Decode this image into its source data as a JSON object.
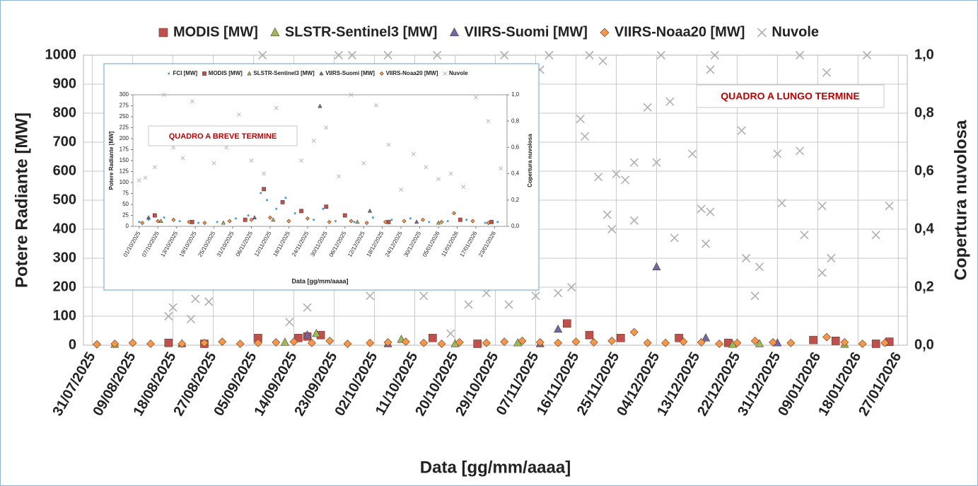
{
  "chart_data": [
    {
      "type": "scatter",
      "x_label": "Data [gg/mm/aaaa]",
      "y_label": "Potere Radiante [MW]",
      "y2_label": "Copertura nuvolosa",
      "annotation": "QUADRO A LUNGO TERMINE",
      "grid": true,
      "xlim": [
        "2025-07-29",
        "2026-01-29"
      ],
      "xticks": [
        {
          "value": "2025-07-31",
          "label": "31/07/2025"
        },
        {
          "value": "2025-08-09",
          "label": "09/08/2025"
        },
        {
          "value": "2025-08-18",
          "label": "18/08/2025"
        },
        {
          "value": "2025-08-27",
          "label": "27/08/2025"
        },
        {
          "value": "2025-09-05",
          "label": "05/09/2025"
        },
        {
          "value": "2025-09-14",
          "label": "14/09/2025"
        },
        {
          "value": "2025-09-23",
          "label": "23/09/2025"
        },
        {
          "value": "2025-10-02",
          "label": "02/10/2025"
        },
        {
          "value": "2025-10-11",
          "label": "11/10/2025"
        },
        {
          "value": "2025-10-20",
          "label": "20/10/2025"
        },
        {
          "value": "2025-10-29",
          "label": "29/10/2025"
        },
        {
          "value": "2025-11-07",
          "label": "07/11/2025"
        },
        {
          "value": "2025-11-16",
          "label": "16/11/2025"
        },
        {
          "value": "2025-11-25",
          "label": "25/11/2025"
        },
        {
          "value": "2025-12-04",
          "label": "04/12/2025"
        },
        {
          "value": "2025-12-13",
          "label": "13/12/2025"
        },
        {
          "value": "2025-12-22",
          "label": "22/12/2025"
        },
        {
          "value": "2025-12-31",
          "label": "31/12/2025"
        },
        {
          "value": "2026-01-09",
          "label": "09/01/2026"
        },
        {
          "value": "2026-01-18",
          "label": "18/01/2026"
        },
        {
          "value": "2026-01-27",
          "label": "27/01/2026"
        }
      ],
      "ylim": [
        0,
        1000
      ],
      "yticks": [
        0,
        100,
        200,
        300,
        400,
        500,
        600,
        700,
        800,
        900,
        1000
      ],
      "y2lim": [
        0,
        1
      ],
      "y2ticks": [
        {
          "value": 0,
          "label": "0,0"
        },
        {
          "value": 0.2,
          "label": "0,2"
        },
        {
          "value": 0.4,
          "label": "0,4"
        },
        {
          "value": 0.6,
          "label": "0,6"
        },
        {
          "value": 0.8,
          "label": "0,8"
        },
        {
          "value": 1,
          "label": "1,0"
        }
      ],
      "series": [
        {
          "name": "MODIS [MW]",
          "color": "#c0504d",
          "marker": "square",
          "x": [
            "2025-08-17",
            "2025-08-25",
            "2025-09-06",
            "2025-09-15",
            "2025-09-17",
            "2025-09-20",
            "2025-10-15",
            "2025-10-25",
            "2025-11-14",
            "2025-11-19",
            "2025-11-26",
            "2025-12-09",
            "2025-12-20",
            "2026-01-08",
            "2026-01-13",
            "2026-01-22",
            "2026-01-25"
          ],
          "values": [
            8,
            5,
            25,
            25,
            30,
            35,
            25,
            5,
            75,
            35,
            25,
            25,
            8,
            18,
            15,
            5,
            12
          ]
        },
        {
          "name": "SLSTR-Sentinel3 [MW]",
          "color": "#9bbb59",
          "marker": "triangle",
          "x": [
            "2025-08-05",
            "2025-09-12",
            "2025-09-19",
            "2025-10-08",
            "2025-10-20",
            "2025-11-03",
            "2025-12-21",
            "2025-12-27",
            "2026-01-15"
          ],
          "values": [
            3,
            10,
            40,
            20,
            5,
            8,
            3,
            5,
            3
          ]
        },
        {
          "name": "VIIRS-Suomi  [MW]",
          "color": "#7067a8",
          "marker": "triangle",
          "x": [
            "2025-08-20",
            "2025-09-17",
            "2025-10-05",
            "2025-11-08",
            "2025-11-12",
            "2025-12-04",
            "2025-12-15",
            "2025-12-31"
          ],
          "values": [
            5,
            35,
            5,
            5,
            55,
            270,
            25,
            8
          ]
        },
        {
          "name": "VIIRS-Noaa20 [MW]",
          "color": "#f79646",
          "marker": "diamond",
          "x": [
            "2025-08-01",
            "2025-08-05",
            "2025-08-09",
            "2025-08-13",
            "2025-08-20",
            "2025-08-25",
            "2025-08-29",
            "2025-09-02",
            "2025-09-06",
            "2025-09-10",
            "2025-09-14",
            "2025-09-18",
            "2025-09-22",
            "2025-09-26",
            "2025-10-01",
            "2025-10-05",
            "2025-10-09",
            "2025-10-13",
            "2025-10-17",
            "2025-10-21",
            "2025-10-27",
            "2025-10-31",
            "2025-11-04",
            "2025-11-08",
            "2025-11-12",
            "2025-11-16",
            "2025-11-20",
            "2025-11-24",
            "2025-11-29",
            "2025-12-02",
            "2025-12-06",
            "2025-12-10",
            "2025-12-14",
            "2025-12-18",
            "2025-12-22",
            "2025-12-26",
            "2025-12-30",
            "2026-01-03",
            "2026-01-11",
            "2026-01-15",
            "2026-01-19",
            "2026-01-24"
          ],
          "values": [
            3,
            5,
            8,
            5,
            5,
            8,
            12,
            5,
            8,
            10,
            12,
            8,
            15,
            5,
            8,
            10,
            12,
            8,
            5,
            10,
            8,
            12,
            15,
            10,
            8,
            12,
            10,
            15,
            45,
            8,
            8,
            12,
            10,
            5,
            8,
            15,
            10,
            8,
            28,
            10,
            5,
            8
          ]
        },
        {
          "name": "Nuvole",
          "color": "#b0b0b0",
          "marker": "x",
          "axis": "y2",
          "x": [
            "2025-08-17",
            "2025-08-18",
            "2025-08-22",
            "2025-08-23",
            "2025-08-26",
            "2025-09-07",
            "2025-09-13",
            "2025-09-17",
            "2025-09-24",
            "2025-09-27",
            "2025-10-01",
            "2025-10-05",
            "2025-10-13",
            "2025-10-16",
            "2025-10-19",
            "2025-10-23",
            "2025-10-27",
            "2025-10-31",
            "2025-11-01",
            "2025-11-07",
            "2025-11-08",
            "2025-11-10",
            "2025-11-12",
            "2025-11-15",
            "2025-11-17",
            "2025-11-18",
            "2025-11-19",
            "2025-11-21",
            "2025-11-22",
            "2025-11-23",
            "2025-11-24",
            "2025-11-25",
            "2025-11-27",
            "2025-11-29",
            "2025-11-29",
            "2025-12-02",
            "2025-12-04",
            "2025-12-05",
            "2025-12-07",
            "2025-12-08",
            "2025-12-12",
            "2025-12-14",
            "2025-12-15",
            "2025-12-16",
            "2025-12-16",
            "2025-12-17",
            "2025-12-23",
            "2025-12-24",
            "2025-12-26",
            "2025-12-27",
            "2025-12-31",
            "2026-01-01",
            "2026-01-05",
            "2026-01-05",
            "2026-01-06",
            "2026-01-10",
            "2026-01-10",
            "2026-01-11",
            "2026-01-12",
            "2026-01-20",
            "2026-01-22",
            "2026-01-25"
          ],
          "values": [
            0.1,
            0.13,
            0.09,
            0.16,
            0.15,
            1,
            0.08,
            0.13,
            1,
            1,
            0.17,
            1,
            0.17,
            1,
            0.04,
            0.14,
            0.18,
            1,
            0.14,
            0.17,
            0.95,
            1,
            0.18,
            0.2,
            0.78,
            0.72,
            1,
            0.58,
            0.98,
            0.45,
            0.4,
            0.59,
            0.57,
            0.63,
            0.43,
            0.82,
            0.63,
            1,
            0.84,
            0.37,
            0.66,
            0.47,
            0.35,
            0.46,
            0.95,
            1,
            0.74,
            0.3,
            0.17,
            0.27,
            0.66,
            0.49,
            0.67,
            1,
            0.38,
            0.48,
            0.25,
            0.94,
            0.3,
            1,
            0.38,
            0.48
          ]
        }
      ]
    },
    {
      "type": "scatter",
      "x_label": "Data [gg/mm/aaaa]",
      "y_label": "Potere Radiante [MW]",
      "y2_label": "Copertura nuvolosa",
      "annotation": "QUADRO A BREVE TERMINE",
      "grid": false,
      "xlim": [
        "2025-09-29",
        "2026-01-27"
      ],
      "xticks": [
        {
          "value": "2025-10-01",
          "label": "01/10/2025"
        },
        {
          "value": "2025-10-07",
          "label": "07/10/2025"
        },
        {
          "value": "2025-10-13",
          "label": "13/10/2025"
        },
        {
          "value": "2025-10-19",
          "label": "19/10/2025"
        },
        {
          "value": "2025-10-25",
          "label": "25/10/2025"
        },
        {
          "value": "2025-10-31",
          "label": "31/10/2025"
        },
        {
          "value": "2025-11-06",
          "label": "06/11/2025"
        },
        {
          "value": "2025-11-12",
          "label": "12/11/2025"
        },
        {
          "value": "2025-11-18",
          "label": "18/11/2025"
        },
        {
          "value": "2025-11-24",
          "label": "24/11/2025"
        },
        {
          "value": "2025-11-30",
          "label": "30/11/2025"
        },
        {
          "value": "2025-12-06",
          "label": "06/12/2025"
        },
        {
          "value": "2025-12-12",
          "label": "12/12/2025"
        },
        {
          "value": "2025-12-18",
          "label": "18/12/2025"
        },
        {
          "value": "2025-12-24",
          "label": "24/12/2025"
        },
        {
          "value": "2025-12-30",
          "label": "30/12/2025"
        },
        {
          "value": "2026-01-05",
          "label": "05/01/2026"
        },
        {
          "value": "2026-01-11",
          "label": "11/01/2026"
        },
        {
          "value": "2026-01-17",
          "label": "17/01/2026"
        },
        {
          "value": "2026-01-23",
          "label": "23/01/2026"
        }
      ],
      "ylim": [
        0,
        300
      ],
      "yticks": [
        0,
        25,
        50,
        75,
        100,
        125,
        150,
        175,
        200,
        225,
        250,
        275,
        300
      ],
      "y2lim": [
        0,
        1
      ],
      "y2ticks": [
        {
          "value": 0,
          "label": "0,0"
        },
        {
          "value": 0.2,
          "label": "0,2"
        },
        {
          "value": 0.4,
          "label": "0,4"
        },
        {
          "value": 0.6,
          "label": "0,6"
        },
        {
          "value": 0.8,
          "label": "0,8"
        },
        {
          "value": 1,
          "label": "1,0"
        }
      ],
      "series": [
        {
          "name": "FCI [MW]",
          "color": "#4f9fdc",
          "marker": "dot",
          "x": [
            "2025-10-01",
            "2025-10-04",
            "2025-10-09",
            "2025-10-14",
            "2025-10-20",
            "2025-10-26",
            "2025-11-01",
            "2025-11-05",
            "2025-11-09",
            "2025-11-11",
            "2025-11-14",
            "2025-11-17",
            "2025-11-20",
            "2025-11-26",
            "2025-11-29",
            "2025-12-03",
            "2025-12-09",
            "2025-12-15",
            "2025-12-21",
            "2025-12-27",
            "2026-01-02",
            "2026-01-08",
            "2026-01-14",
            "2026-01-20",
            "2026-01-24"
          ],
          "values": [
            10,
            15,
            20,
            12,
            8,
            10,
            18,
            25,
            76,
            60,
            40,
            65,
            30,
            15,
            40,
            12,
            10,
            20,
            15,
            18,
            10,
            12,
            15,
            8,
            10
          ]
        },
        {
          "name": "MODIS [MW]",
          "color": "#c0504d",
          "marker": "square",
          "x": [
            "2025-10-06",
            "2025-10-18",
            "2025-11-04",
            "2025-11-10",
            "2025-11-16",
            "2025-11-22",
            "2025-11-30",
            "2025-12-06",
            "2025-12-20",
            "2026-01-12",
            "2026-01-22"
          ],
          "values": [
            25,
            10,
            15,
            85,
            55,
            35,
            45,
            25,
            10,
            15,
            10
          ]
        },
        {
          "name": "SLSTR-Sentinel3 [MW]",
          "color": "#9bbb59",
          "marker": "triangle",
          "x": [
            "2025-10-08",
            "2025-10-28",
            "2025-11-13",
            "2025-12-10",
            "2026-01-05"
          ],
          "values": [
            12,
            8,
            15,
            10,
            8
          ]
        },
        {
          "name": "VIIRS-Suomi  [MW]",
          "color": "#7067a8",
          "marker": "triangle",
          "x": [
            "2025-10-04",
            "2025-11-07",
            "2025-11-28",
            "2025-12-14",
            "2025-12-29"
          ],
          "values": [
            20,
            20,
            274,
            35,
            10
          ]
        },
        {
          "name": "VIIRS-Noaa20 [MW]",
          "color": "#f79646",
          "marker": "diamond",
          "x": [
            "2025-10-02",
            "2025-10-07",
            "2025-10-12",
            "2025-10-17",
            "2025-10-22",
            "2025-10-30",
            "2025-11-06",
            "2025-11-12",
            "2025-11-18",
            "2025-11-24",
            "2025-12-01",
            "2025-12-08",
            "2025-12-13",
            "2025-12-19",
            "2025-12-25",
            "2025-12-31",
            "2026-01-06",
            "2026-01-10",
            "2026-01-16",
            "2026-01-21"
          ],
          "values": [
            8,
            12,
            15,
            10,
            8,
            12,
            15,
            20,
            12,
            18,
            10,
            12,
            8,
            10,
            12,
            15,
            10,
            30,
            12,
            8
          ]
        },
        {
          "name": "Nuvole",
          "color": "#b8b8b8",
          "marker": "x",
          "axis": "y2",
          "x": [
            "2025-10-01",
            "2025-10-03",
            "2025-10-06",
            "2025-10-09",
            "2025-10-12",
            "2025-10-15",
            "2025-10-18",
            "2025-10-22",
            "2025-10-25",
            "2025-10-29",
            "2025-11-02",
            "2025-11-06",
            "2025-11-10",
            "2025-11-14",
            "2025-11-18",
            "2025-11-22",
            "2025-11-26",
            "2025-11-30",
            "2025-12-04",
            "2025-12-08",
            "2025-12-12",
            "2025-12-16",
            "2025-12-20",
            "2025-12-24",
            "2025-12-28",
            "2026-01-01",
            "2026-01-05",
            "2026-01-09",
            "2026-01-13",
            "2026-01-17",
            "2026-01-21",
            "2026-01-25"
          ],
          "values": [
            0.35,
            0.37,
            0.45,
            1,
            0.6,
            0.52,
            0.95,
            0.75,
            0.48,
            0.6,
            0.85,
            0.5,
            0.4,
            0.9,
            0.7,
            0.5,
            0.65,
            0.75,
            0.38,
            1,
            0.48,
            0.92,
            0.62,
            0.28,
            0.55,
            0.45,
            0.36,
            0.4,
            0.3,
            0.98,
            0.8,
            0.44
          ]
        }
      ]
    }
  ]
}
